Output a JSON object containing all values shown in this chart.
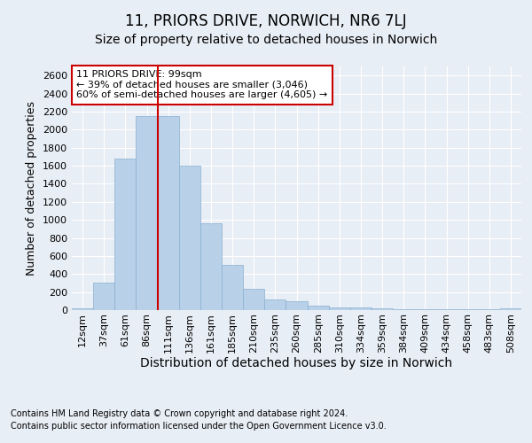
{
  "title": "11, PRIORS DRIVE, NORWICH, NR6 7LJ",
  "subtitle": "Size of property relative to detached houses in Norwich",
  "xlabel": "Distribution of detached houses by size in Norwich",
  "ylabel": "Number of detached properties",
  "footer_line1": "Contains HM Land Registry data © Crown copyright and database right 2024.",
  "footer_line2": "Contains public sector information licensed under the Open Government Licence v3.0.",
  "categories": [
    "12sqm",
    "37sqm",
    "61sqm",
    "86sqm",
    "111sqm",
    "136sqm",
    "161sqm",
    "185sqm",
    "210sqm",
    "235sqm",
    "260sqm",
    "285sqm",
    "310sqm",
    "334sqm",
    "359sqm",
    "384sqm",
    "409sqm",
    "434sqm",
    "458sqm",
    "483sqm",
    "508sqm"
  ],
  "values": [
    20,
    300,
    1680,
    2150,
    2150,
    1600,
    960,
    500,
    240,
    120,
    100,
    50,
    30,
    25,
    15,
    8,
    5,
    8,
    5,
    5,
    15
  ],
  "bar_color": "#b8d0e8",
  "bar_edge_color": "#8ab0d0",
  "annotation_text": "11 PRIORS DRIVE: 99sqm\n← 39% of detached houses are smaller (3,046)\n60% of semi-detached houses are larger (4,605) →",
  "vline_x": 3.5,
  "vline_color": "#cc0000",
  "annotation_box_color": "#cc0000",
  "ylim": [
    0,
    2700
  ],
  "yticks": [
    0,
    200,
    400,
    600,
    800,
    1000,
    1200,
    1400,
    1600,
    1800,
    2000,
    2200,
    2400,
    2600
  ],
  "bg_color": "#e8eef5",
  "axes_bg_color": "#e8eef5",
  "grid_color": "#ffffff",
  "title_fontsize": 12,
  "subtitle_fontsize": 10,
  "ylabel_fontsize": 9,
  "xlabel_fontsize": 10,
  "tick_fontsize": 8,
  "footer_fontsize": 7,
  "annotation_fontsize": 8
}
